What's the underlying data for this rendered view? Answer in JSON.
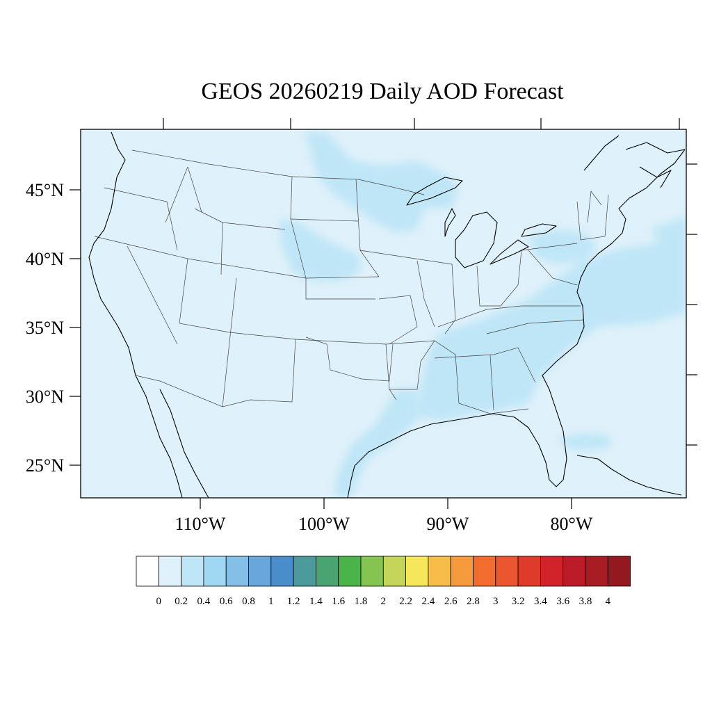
{
  "title": "GEOS 20260219 Daily AOD Forecast",
  "map": {
    "background_color": "#dff1fa",
    "lat_labels": [
      "45°N",
      "40°N",
      "35°N",
      "30°N",
      "25°N"
    ],
    "lon_labels": [
      "110°W",
      "100°W",
      "90°W",
      "80°W"
    ]
  },
  "colorbar": {
    "colors": [
      "#ffffff",
      "#dff1fa",
      "#bfe6f7",
      "#a0d8f3",
      "#83bfe6",
      "#68a6dc",
      "#4a8dcb",
      "#4b9b9c",
      "#49a471",
      "#4ab44a",
      "#85c451",
      "#c4d55a",
      "#f6e65c",
      "#f7bd48",
      "#f59a3d",
      "#f26d2d",
      "#e95630",
      "#df3b2a",
      "#d12329",
      "#bc1c27",
      "#a81c24",
      "#931820"
    ],
    "labels": [
      "0",
      "0.2",
      "0.4",
      "0.6",
      "0.8",
      "1",
      "1.2",
      "1.4",
      "1.6",
      "1.8",
      "2",
      "2.2",
      "2.4",
      "2.6",
      "2.8",
      "3",
      "3.2",
      "3.4",
      "3.6",
      "3.8",
      "4"
    ]
  }
}
